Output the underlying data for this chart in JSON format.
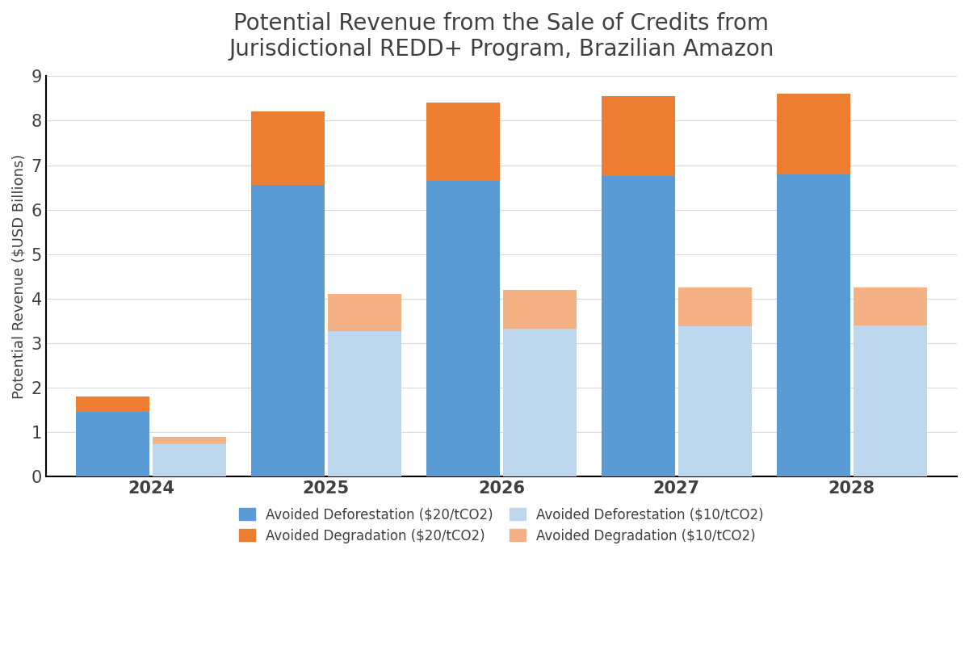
{
  "title": "Potential Revenue from the Sale of Credits from\nJurisdictional REDD+ Program, Brazilian Amazon",
  "ylabel": "Potential Revenue ($USD Billions)",
  "years": [
    "2024",
    "2025",
    "2026",
    "2027",
    "2028"
  ],
  "deforestation_20": [
    1.45,
    6.55,
    6.65,
    6.75,
    6.8
  ],
  "degradation_20": [
    0.35,
    1.65,
    1.75,
    1.8,
    1.8
  ],
  "deforestation_10": [
    0.725,
    3.275,
    3.325,
    3.375,
    3.4
  ],
  "degradation_10": [
    0.175,
    0.825,
    0.875,
    0.875,
    0.85
  ],
  "color_deforestation_20": "#5B9BD5",
  "color_degradation_20": "#ED7D31",
  "color_deforestation_10": "#BDD7EE",
  "color_degradation_10": "#F4B183",
  "ylim": [
    0,
    9
  ],
  "yticks": [
    0,
    1,
    2,
    3,
    4,
    5,
    6,
    7,
    8,
    9
  ],
  "bar_width": 0.42,
  "bar_gap": 0.02,
  "legend_labels": [
    "Avoided Deforestation ($20/tCO2)",
    "Avoided Degradation ($20/tCO2)",
    "Avoided Deforestation ($10/tCO2)",
    "Avoided Degradation ($10/tCO2)"
  ],
  "title_fontsize": 20,
  "axis_label_fontsize": 13,
  "tick_fontsize": 15,
  "legend_fontsize": 12
}
